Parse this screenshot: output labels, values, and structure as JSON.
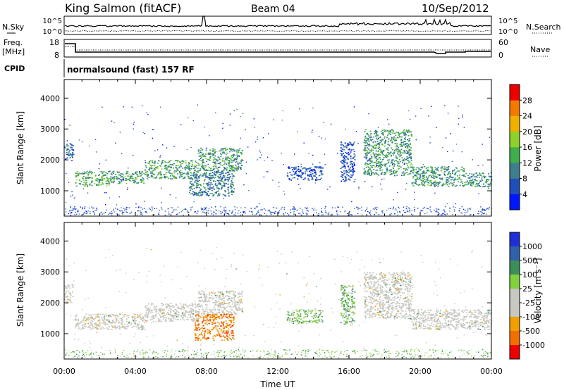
{
  "header": {
    "title": "King Salmon (fitACF)",
    "beam": "Beam 04",
    "date": "10/Sep/2012"
  },
  "panels": {
    "nsky": {
      "left_label": "N.Sky",
      "right_label": "N.Search",
      "left_ticks": [
        "10^5",
        "10^0"
      ],
      "right_ticks": [
        "10^5",
        "10^0"
      ]
    },
    "freq": {
      "left_label_line1": "Freq.",
      "left_label_line2": "[MHz]",
      "right_label": "Nave",
      "left_ticks": [
        "18",
        "8"
      ],
      "right_ticks": [
        "60",
        "0"
      ],
      "cpid_label": "CPID",
      "cpid_text": "normalsound (fast) 157 RF"
    }
  },
  "chart_data": [
    {
      "type": "heatmap",
      "name": "power",
      "xlabel": "",
      "ylabel": "Slant Range [km]",
      "xlim": [
        0,
        24
      ],
      "ylim": [
        180,
        4600
      ],
      "yticks": [
        "1000",
        "2000",
        "3000",
        "4000"
      ],
      "colorbar": {
        "label": "Power [dB]",
        "ticks": [
          "4",
          "8",
          "12",
          "16",
          "20",
          "24",
          "28"
        ],
        "range": [
          0,
          30
        ],
        "colors": [
          "#0018ff",
          "#1f4fb8",
          "#3e7f8e",
          "#3fae4b",
          "#8ed12a",
          "#f0b000",
          "#f37a00",
          "#ee0000"
        ]
      },
      "bands": [
        {
          "x": [
            0.0,
            0.5
          ],
          "y": [
            2000,
            2600
          ],
          "value": 8
        },
        {
          "x": [
            0.6,
            2.5
          ],
          "y": [
            1150,
            1650
          ],
          "value": 14
        },
        {
          "x": [
            2.5,
            4.5
          ],
          "y": [
            1250,
            1650
          ],
          "value": 12
        },
        {
          "x": [
            4.5,
            7.5
          ],
          "y": [
            1400,
            2000
          ],
          "value": 13
        },
        {
          "x": [
            7.5,
            10.0
          ],
          "y": [
            1650,
            2400
          ],
          "value": 12
        },
        {
          "x": [
            7.0,
            9.5
          ],
          "y": [
            850,
            1650
          ],
          "value": 9
        },
        {
          "x": [
            12.5,
            14.5
          ],
          "y": [
            1350,
            1800
          ],
          "value": 6
        },
        {
          "x": [
            15.5,
            16.3
          ],
          "y": [
            1300,
            2600
          ],
          "value": 6
        },
        {
          "x": [
            16.8,
            19.5
          ],
          "y": [
            1500,
            3000
          ],
          "value": 12
        },
        {
          "x": [
            19.5,
            22.5
          ],
          "y": [
            1150,
            1800
          ],
          "value": 12
        },
        {
          "x": [
            22.5,
            24.0
          ],
          "y": [
            1150,
            1600
          ],
          "value": 11
        }
      ]
    },
    {
      "type": "heatmap",
      "name": "velocity",
      "xlabel": "Time UT",
      "ylabel": "Slant Range [km]",
      "xlim": [
        0,
        24
      ],
      "ylim": [
        180,
        4600
      ],
      "xticks": [
        "00:00",
        "04:00",
        "08:00",
        "12:00",
        "16:00",
        "20:00",
        "00:00"
      ],
      "yticks": [
        "1000",
        "2000",
        "3000",
        "4000"
      ],
      "colorbar": {
        "label": "Velocity [m s⁻¹]",
        "ticks": [
          "1000",
          "500",
          "100",
          "25",
          "-25",
          "-100",
          "-500",
          "-1000"
        ],
        "colors": [
          "#1f2fd8",
          "#3060a8",
          "#3d8f5a",
          "#80d040",
          "#c8c8c0",
          "#c8c8c0",
          "#f0a000",
          "#f07000",
          "#ee0000"
        ]
      },
      "bands": [
        {
          "x": [
            0.0,
            0.5
          ],
          "y": [
            2000,
            2600
          ],
          "value": 0
        },
        {
          "x": [
            0.6,
            4.5
          ],
          "y": [
            1150,
            1650
          ],
          "value": 0
        },
        {
          "x": [
            4.5,
            7.5
          ],
          "y": [
            1400,
            2000
          ],
          "value": 0
        },
        {
          "x": [
            7.5,
            10.0
          ],
          "y": [
            1650,
            2400
          ],
          "value": 0
        },
        {
          "x": [
            7.3,
            9.5
          ],
          "y": [
            800,
            1650
          ],
          "value": -300
        },
        {
          "x": [
            12.5,
            14.5
          ],
          "y": [
            1350,
            1800
          ],
          "value": 50
        },
        {
          "x": [
            15.5,
            16.3
          ],
          "y": [
            1300,
            2600
          ],
          "value": 100
        },
        {
          "x": [
            16.8,
            19.5
          ],
          "y": [
            1500,
            3000
          ],
          "value": 0
        },
        {
          "x": [
            19.5,
            24.0
          ],
          "y": [
            1150,
            1800
          ],
          "value": 0
        }
      ]
    }
  ]
}
